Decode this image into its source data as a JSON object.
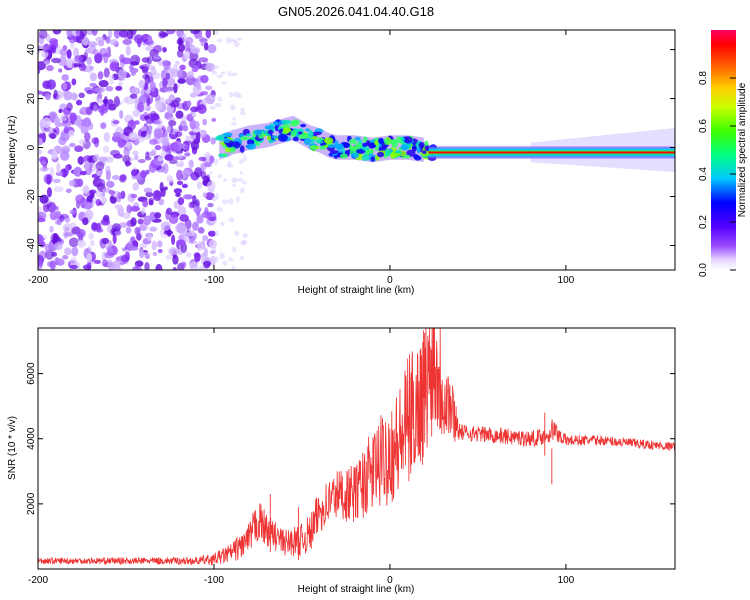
{
  "title": "GN05.2026.041.04.40.G18",
  "chart_data": [
    {
      "type": "heatmap",
      "name": "spectrogram",
      "xlabel": "Height of straight line (km)",
      "ylabel": "Frequency (Hz)",
      "xlim": [
        -200,
        162
      ],
      "ylim": [
        -50,
        48
      ],
      "xticks": [
        -200,
        -100,
        0,
        100
      ],
      "yticks": [
        -40,
        -20,
        0,
        20,
        40
      ],
      "colorbar": {
        "label": "Normalized spectral amplitude",
        "range": [
          0,
          1
        ],
        "ticks": [
          0.0,
          0.2,
          0.4,
          0.6,
          0.8
        ]
      },
      "ridge": {
        "x": [
          -97,
          -90,
          -80,
          -70,
          -60,
          -55,
          -50,
          -45,
          -40,
          -35,
          -30,
          -20,
          -10,
          0,
          10,
          20,
          25,
          40,
          60,
          80,
          100,
          130,
          162
        ],
        "y": [
          0,
          2,
          4,
          5,
          7,
          8,
          6,
          4,
          3,
          1,
          0,
          0,
          -1,
          0,
          0,
          -1,
          -2,
          -2,
          -2,
          -2,
          -2,
          -2,
          -2
        ]
      }
    },
    {
      "type": "line",
      "name": "snr",
      "xlabel": "Height of straight line (km)",
      "ylabel": "SNR (10 * v/v)",
      "xlim": [
        -200,
        162
      ],
      "ylim": [
        0,
        7400
      ],
      "xticks": [
        -200,
        -100,
        0,
        100
      ],
      "yticks": [
        2000,
        4000,
        6000
      ],
      "color": "#ee3333",
      "envelope": {
        "x": [
          -200,
          -150,
          -110,
          -100,
          -90,
          -80,
          -75,
          -70,
          -60,
          -50,
          -45,
          -40,
          -30,
          -20,
          -10,
          0,
          5,
          10,
          20,
          25,
          30,
          40,
          50,
          60,
          70,
          80,
          90,
          92,
          100,
          120,
          140,
          162
        ],
        "y": [
          250,
          250,
          250,
          300,
          500,
          900,
          1500,
          1200,
          800,
          900,
          1100,
          1800,
          2300,
          2300,
          3000,
          3600,
          3800,
          4500,
          5500,
          6500,
          5600,
          4200,
          4150,
          4100,
          4050,
          4000,
          4100,
          4300,
          3950,
          3950,
          3850,
          3750
        ],
        "noise": [
          100,
          100,
          120,
          180,
          300,
          500,
          700,
          500,
          400,
          500,
          600,
          700,
          800,
          900,
          1300,
          1600,
          1800,
          2000,
          2200,
          2200,
          1800,
          250,
          250,
          250,
          250,
          250,
          250,
          350,
          180,
          150,
          150,
          130
        ]
      },
      "spikes": [
        {
          "x": -68,
          "y": 2300
        },
        {
          "x": -52,
          "y": 1900
        },
        {
          "x": 25,
          "y": 7400
        },
        {
          "x": 20,
          "y": 6800
        },
        {
          "x": 12,
          "y": 5900
        },
        {
          "x": 92,
          "y": 2600
        },
        {
          "x": 88,
          "y": 4800
        }
      ]
    }
  ]
}
